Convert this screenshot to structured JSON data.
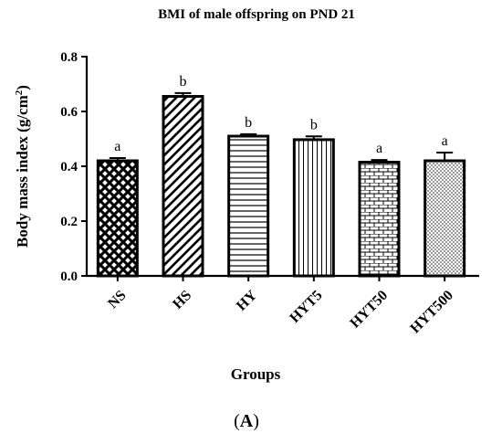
{
  "chart_data": {
    "type": "bar",
    "title": "BMI of male offspring on PND 21",
    "xlabel": "Groups",
    "ylabel": "Body mass index (g/cm",
    "ylabel_superscript": "2",
    "ylabel_suffix": ")",
    "ylim": [
      0,
      0.8
    ],
    "yticks": [
      "0.0",
      "0.2",
      "0.4",
      "0.6",
      "0.8"
    ],
    "categories": [
      "NS",
      "HS",
      "HY",
      "HYT5",
      "HYT50",
      "HYT500"
    ],
    "values": [
      0.42,
      0.655,
      0.51,
      0.497,
      0.415,
      0.42
    ],
    "errors": [
      0.01,
      0.012,
      0.007,
      0.012,
      0.008,
      0.03
    ],
    "significance": [
      "a",
      "b",
      "b",
      "b",
      "a",
      "a"
    ],
    "patterns": [
      "crosshatch",
      "diagonal",
      "horizontal",
      "vertical",
      "brick",
      "dots"
    ],
    "legend": "none",
    "grid": false
  },
  "panel_label": {
    "open": "(",
    "letter": "A",
    "close": ")"
  }
}
